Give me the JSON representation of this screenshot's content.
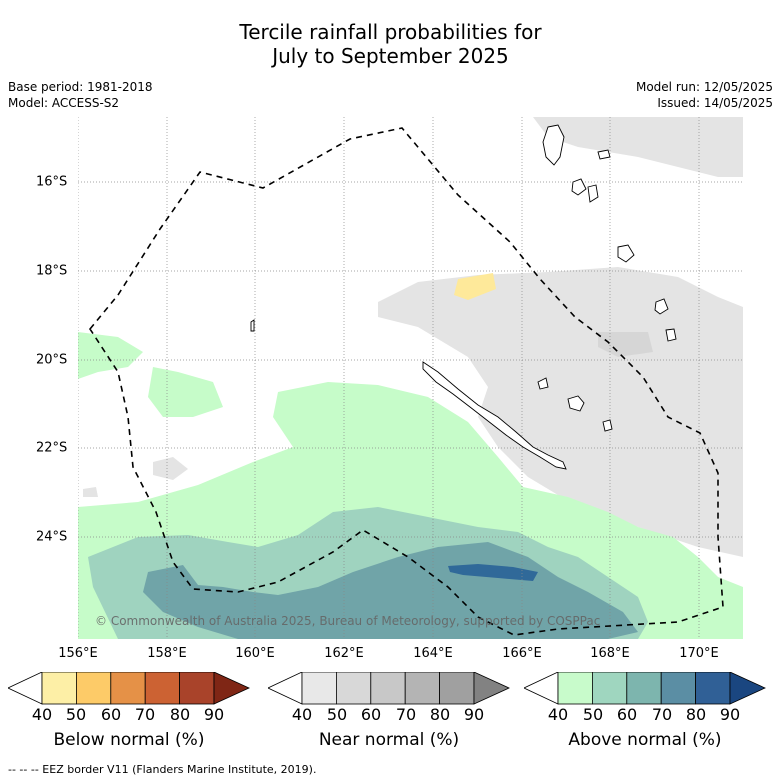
{
  "title_line1": "Tercile rainfall probabilities for",
  "title_line2": "July to September 2025",
  "base_period": "Base period: 1981-2018",
  "model": "Model: ACCESS-S2",
  "model_run": "Model run: 12/05/2025",
  "issued": "Issued: 14/05/2025",
  "copyright": "© Commonwealth of Australia 2025, Bureau of Meteorology, supported by COSPPac",
  "lon_labels": [
    "156°E",
    "158°E",
    "160°E",
    "162°E",
    "164°E",
    "166°E",
    "168°E",
    "170°E"
  ],
  "lat_labels": [
    "16°S",
    "18°S",
    "20°S",
    "22°S",
    "24°S"
  ],
  "legends": [
    {
      "title": "Below normal (%)",
      "ticks": [
        "40",
        "50",
        "60",
        "70",
        "80",
        "90"
      ],
      "colors": [
        "#ffffff",
        "#fdefa6",
        "#fdcb68",
        "#e59147",
        "#cc6233",
        "#a9432a",
        "#7f2615"
      ]
    },
    {
      "title": "Near normal (%)",
      "ticks": [
        "40",
        "50",
        "60",
        "70",
        "80",
        "90"
      ],
      "colors": [
        "#ffffff",
        "#e8e8e8",
        "#d8d8d8",
        "#c8c8c8",
        "#b4b4b4",
        "#a0a0a0",
        "#828282"
      ]
    },
    {
      "title": "Above normal (%)",
      "ticks": [
        "40",
        "50",
        "60",
        "70",
        "80",
        "90"
      ],
      "colors": [
        "#ffffff",
        "#c8fbcb",
        "#9fd6bf",
        "#7db5ae",
        "#5b8ea4",
        "#306096",
        "#1a4680"
      ]
    }
  ],
  "footnote": "--  --  -- EEZ border V11 (Flanders Marine Institute, 2019).",
  "colors": {
    "near_light": "#e4e4e4",
    "near_mid": "#d6d6d6",
    "above_1": "#c6fcc9",
    "above_2": "#9fd3bf",
    "above_3": "#70a4a8",
    "above_4": "#306999",
    "below_1": "#fee99a"
  }
}
